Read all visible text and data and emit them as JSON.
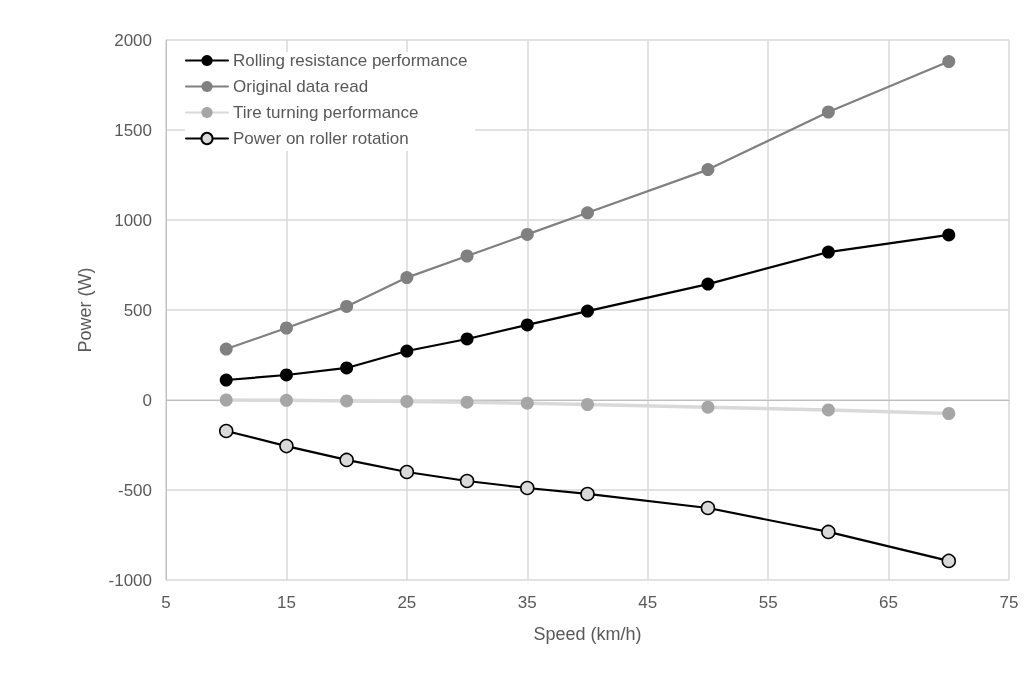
{
  "chart_data": {
    "type": "line",
    "xlabel": "Speed (km/h)",
    "ylabel": "Power (W)",
    "x": [
      10,
      15,
      20,
      25,
      30,
      35,
      40,
      50,
      60,
      70
    ],
    "series": [
      {
        "name": "Rolling resistance performance",
        "color": "#000000",
        "values": [
          111,
          139,
          178,
          272,
          339,
          417,
          494,
          644,
          822,
          917
        ]
      },
      {
        "name": "Original data read",
        "color": "#808080",
        "values": [
          283,
          400,
          520,
          680,
          800,
          920,
          1040,
          1280,
          1600,
          1880
        ]
      },
      {
        "name": "Tire turning performance",
        "color": "#a6a6a6",
        "values": [
          0,
          -2,
          -5,
          -8,
          -12,
          -18,
          -25,
          -40,
          -55,
          -75
        ]
      },
      {
        "name": "Power on roller rotation",
        "color": "#000000",
        "values": [
          -172,
          -256,
          -333,
          -400,
          -450,
          -489,
          -522,
          -600,
          -733,
          -894
        ]
      }
    ],
    "xlim": [
      5,
      75
    ],
    "xticks": [
      5,
      15,
      25,
      35,
      45,
      55,
      65,
      75
    ],
    "ylim": [
      -1000,
      2000
    ],
    "yticks": [
      -1000,
      -500,
      0,
      500,
      1000,
      1500,
      2000
    ],
    "grid": true,
    "legend": "top left",
    "marker": "circle",
    "line_style": "solid"
  }
}
